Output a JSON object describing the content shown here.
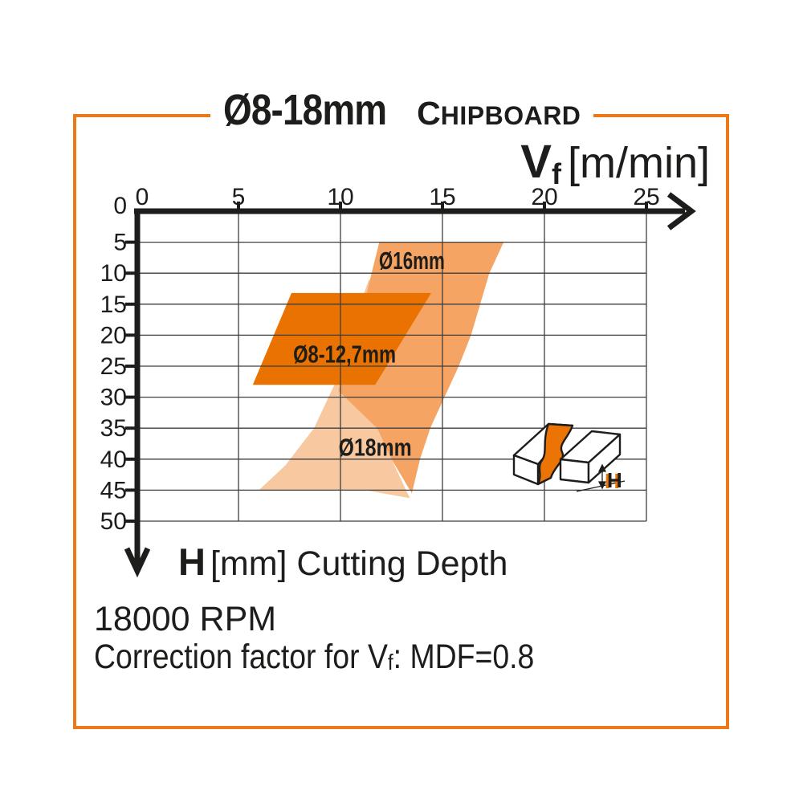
{
  "title": {
    "range": "Ø8-18mm",
    "material_initial": "C",
    "material_rest": "HIPBOARD"
  },
  "x_axis_label": {
    "main": "V",
    "sub": "f",
    "unit": "[m/min]"
  },
  "y_axis_label": {
    "main": "H",
    "unit": "[mm] Cutting Depth"
  },
  "notes": {
    "rpm": "18000 RPM",
    "correction_prefix": "Correction factor for V",
    "correction_sub": "f",
    "correction_suffix": ": MDF=0.8"
  },
  "icon": {
    "label": "H"
  },
  "colors": {
    "frame": "#ED7817",
    "text": "#1d1d1b",
    "grid": "#3e3e3e",
    "axis": "#1d1d1b",
    "band_dark": "#EA7200",
    "band_medium": "#F5A464",
    "band_light": "#F8C9A0",
    "icon_cut": "#EC7404"
  },
  "chart_data": {
    "type": "area",
    "title": "Ø8-18mm Chipboard",
    "xlabel": "Vf [m/min]",
    "ylabel": "H [mm] Cutting Depth",
    "xlim": [
      0,
      25
    ],
    "ylim": [
      0,
      50
    ],
    "y_inverted": true,
    "grid": true,
    "x_ticks": [
      0,
      5,
      10,
      15,
      20,
      25
    ],
    "y_ticks": [
      0,
      5,
      10,
      15,
      20,
      25,
      30,
      35,
      40,
      45,
      50
    ],
    "legend_position": "labels-on-bands",
    "bands": [
      {
        "id": "band-18",
        "label": "Ø18mm",
        "color": "#F8C9A0",
        "label_pos": [
          11.7,
          38.0
        ],
        "label_width": 91,
        "points": [
          [
            11.4,
            11
          ],
          [
            10.4,
            20
          ],
          [
            9.7,
            28
          ],
          [
            8.7,
            35
          ],
          [
            7.3,
            41
          ],
          [
            6.0,
            45
          ],
          [
            11.2,
            45
          ],
          [
            13.4,
            46.3
          ],
          [
            12.5,
            40
          ],
          [
            11.8,
            35
          ],
          [
            10.2,
            29
          ],
          [
            11.0,
            20
          ],
          [
            11.6,
            12
          ]
        ]
      },
      {
        "id": "band-16",
        "label": "Ø16mm",
        "color": "#F5A464",
        "label_pos": [
          13.5,
          7.9
        ],
        "label_width": 82,
        "points": [
          [
            11.9,
            5
          ],
          [
            18.0,
            5
          ],
          [
            17.3,
            10
          ],
          [
            16.85,
            15
          ],
          [
            16.4,
            20
          ],
          [
            15.8,
            25
          ],
          [
            15.1,
            30
          ],
          [
            14.4,
            35
          ],
          [
            13.9,
            40
          ],
          [
            13.5,
            45.5
          ],
          [
            12.5,
            40
          ],
          [
            11.8,
            35
          ],
          [
            9.9,
            29
          ],
          [
            10.6,
            21
          ],
          [
            11.3,
            13
          ]
        ]
      },
      {
        "id": "band-8-127",
        "label": "Ø8-12,7mm",
        "color": "#EA7200",
        "label_pos": [
          10.2,
          23.0
        ],
        "label_width": 128,
        "points": [
          [
            7.6,
            13.2
          ],
          [
            14.45,
            13.2
          ],
          [
            11.7,
            28
          ],
          [
            5.7,
            28
          ]
        ]
      }
    ]
  }
}
